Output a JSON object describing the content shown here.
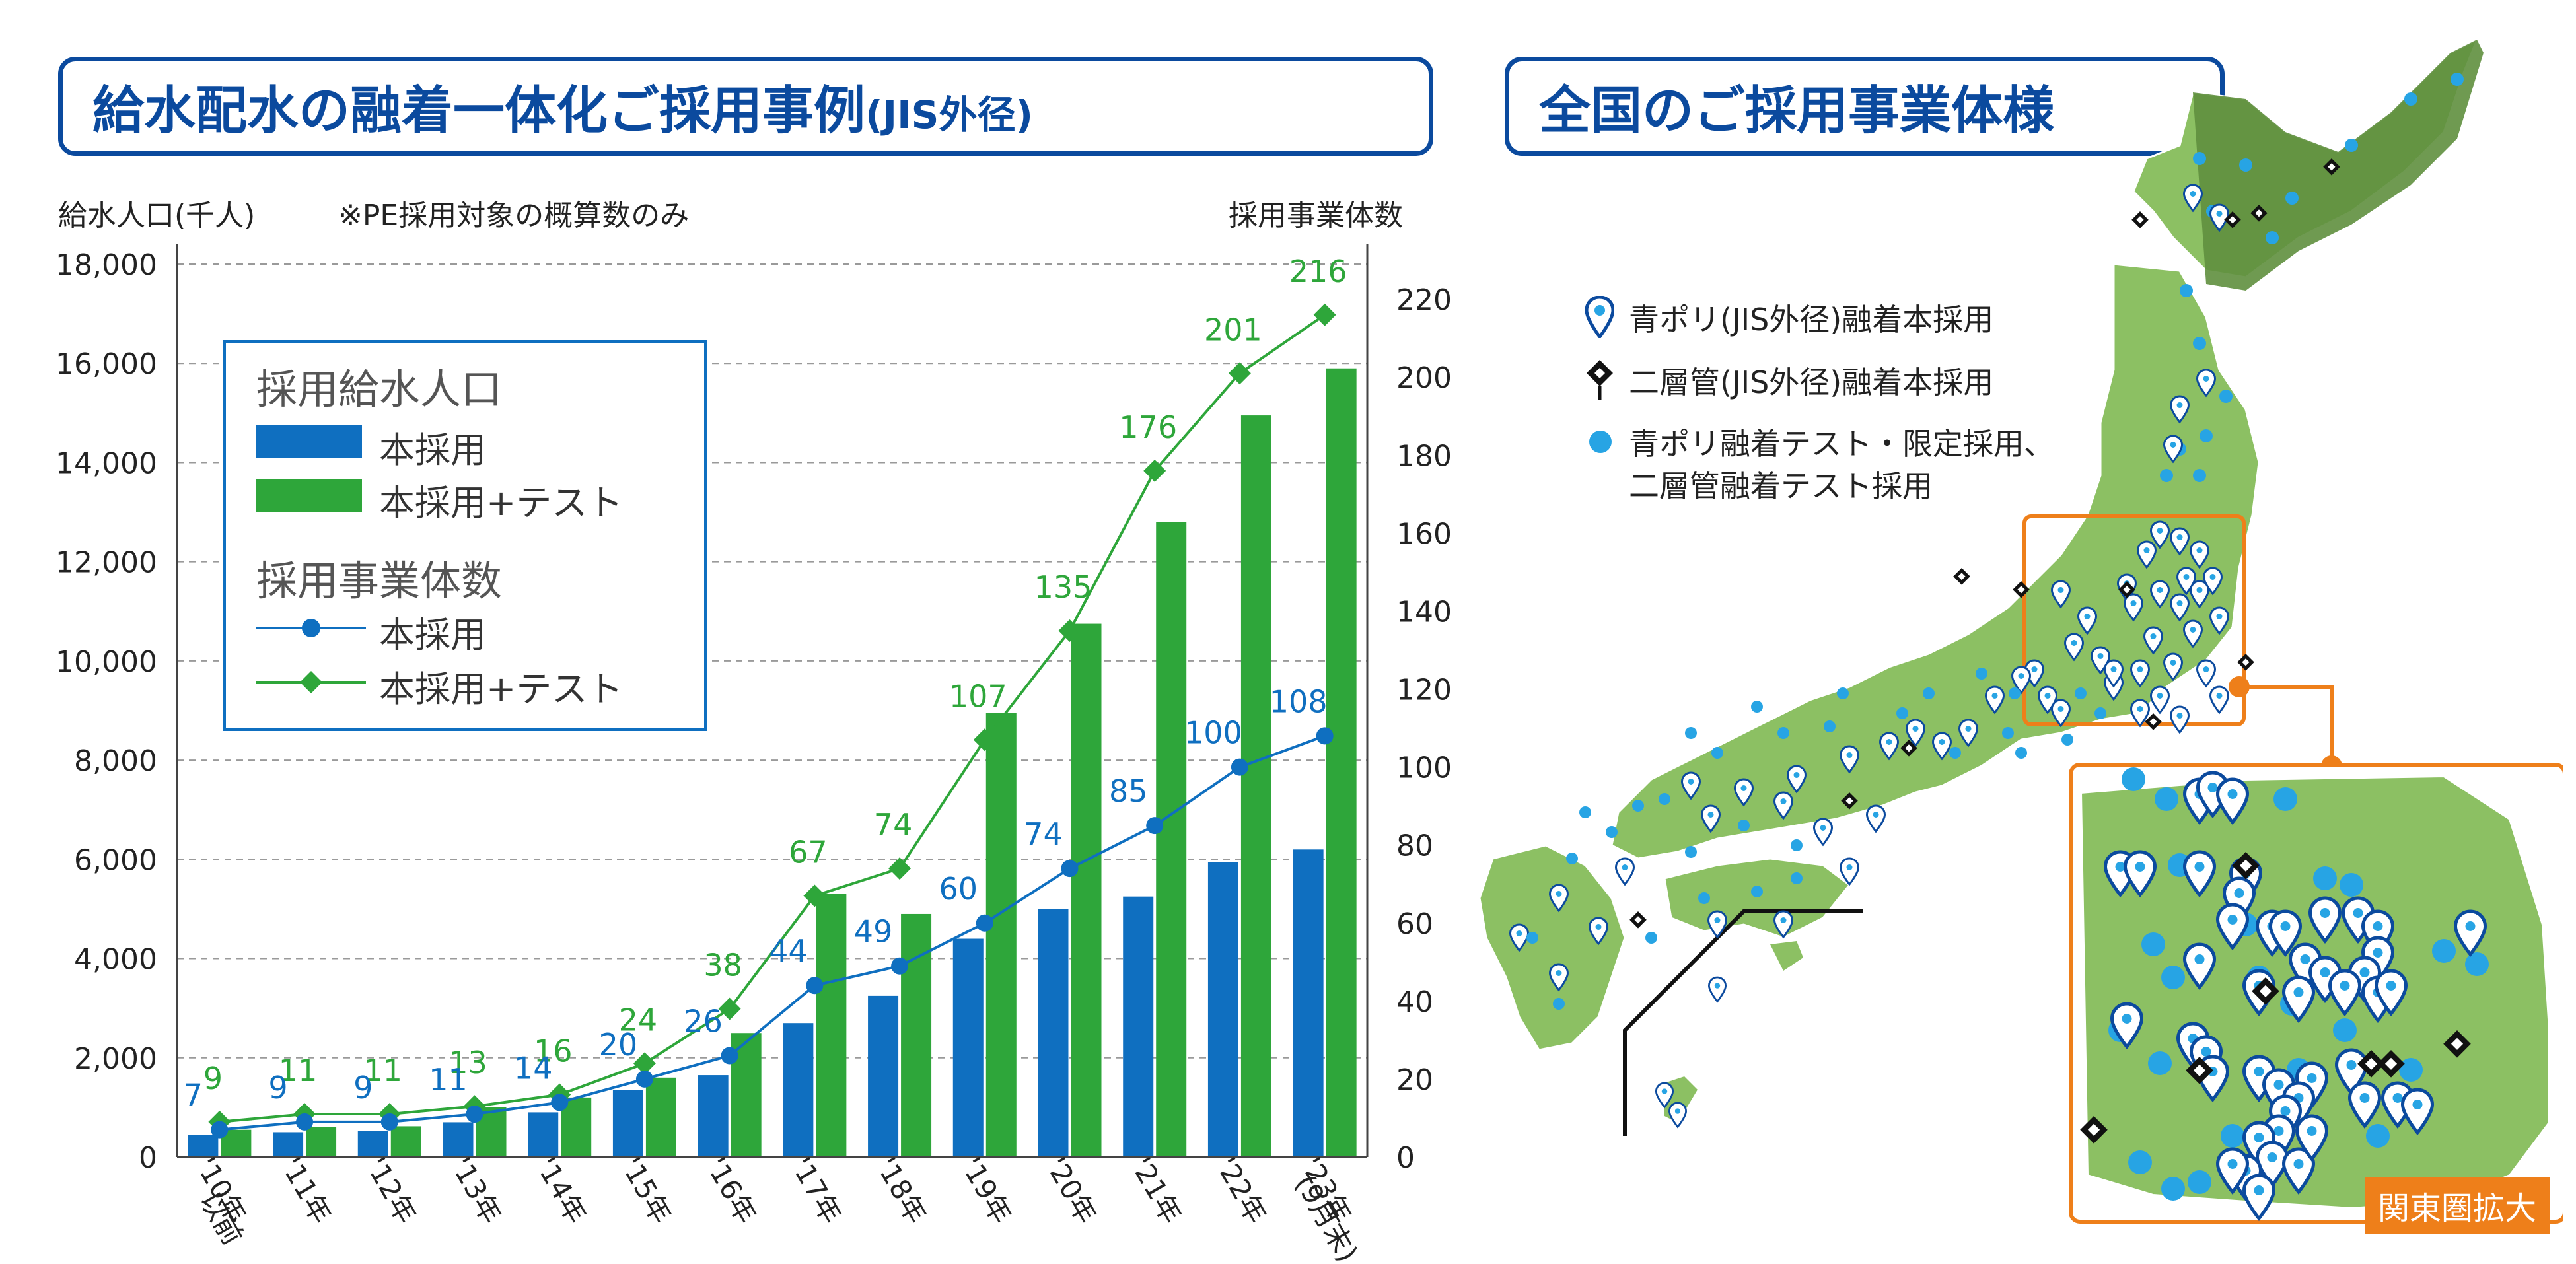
{
  "left_panel": {
    "title": "給水配水の融着一体化ご採用事例",
    "title_suffix": "(JIS外径)",
    "left_axis_label": "給水人口(千人)",
    "note": "※PE採用対象の概算数のみ",
    "right_axis_label": "採用事業体数"
  },
  "legend": {
    "group1_title": "採用給水人口",
    "group1_item1": "本採用",
    "group1_item2": "本採用+テスト",
    "group2_title": "採用事業体数",
    "group2_item1": "本採用",
    "group2_item2": "本採用+テスト"
  },
  "right_panel": {
    "title": "全国のご採用事業体様",
    "legend_pin_blue": "青ポリ(JIS外径)融着本採用",
    "legend_pin_black": "二層管(JIS外径)融着本採用",
    "legend_dot_line1": "青ポリ融着テスト・限定採用、",
    "legend_dot_line2": "二層管融着テスト採用",
    "inset_caption": "関東圏拡大"
  },
  "colors": {
    "blue": "#0f6fc0",
    "green": "#2ea63a",
    "title_blue": "#0b4a9e",
    "map_green": "#8cc063",
    "map_dark": "#5f8f3e",
    "orange": "#ee7f1a",
    "dot_blue": "#27a4e4"
  },
  "chart_data": {
    "type": "bar",
    "categories": [
      "'10年以前",
      "'11年",
      "'12年",
      "'13年",
      "'14年",
      "'15年",
      "'16年",
      "'17年",
      "'18年",
      "'19年",
      "'20年",
      "'21年",
      "'22年",
      "'23年(9月末)"
    ],
    "category_lines": [
      [
        "'10年",
        "以前"
      ],
      [
        "'11年"
      ],
      [
        "'12年"
      ],
      [
        "'13年"
      ],
      [
        "'14年"
      ],
      [
        "'15年"
      ],
      [
        "'16年"
      ],
      [
        "'17年"
      ],
      [
        "'18年"
      ],
      [
        "'19年"
      ],
      [
        "'20年"
      ],
      [
        "'21年"
      ],
      [
        "'22年"
      ],
      [
        "'23年",
        "(9月末)"
      ]
    ],
    "bar_series": [
      {
        "name": "本採用",
        "axis": "left",
        "values": [
          450,
          500,
          520,
          700,
          900,
          1350,
          1650,
          2700,
          3250,
          4400,
          5000,
          5250,
          5950,
          6200
        ]
      },
      {
        "name": "本採用+テスト",
        "axis": "left",
        "values": [
          550,
          600,
          620,
          1000,
          1200,
          1600,
          2500,
          5300,
          4900,
          8950,
          10750,
          12800,
          14950,
          15900
        ]
      }
    ],
    "line_series": [
      {
        "name": "本採用",
        "axis": "right",
        "values": [
          7,
          9,
          9,
          11,
          14,
          20,
          26,
          44,
          49,
          60,
          74,
          85,
          100,
          108
        ]
      },
      {
        "name": "本採用+テスト",
        "axis": "right",
        "values": [
          9,
          11,
          11,
          13,
          16,
          24,
          38,
          67,
          74,
          107,
          135,
          176,
          201,
          216
        ]
      }
    ],
    "left_ylim": [
      0,
      18000
    ],
    "left_ticks": [
      "0",
      "2,000",
      "4,000",
      "6,000",
      "8,000",
      "10,000",
      "12,000",
      "14,000",
      "16,000",
      "18,000"
    ],
    "right_ylim": [
      0,
      229
    ],
    "right_ticks": [
      "0",
      "20",
      "40",
      "60",
      "80",
      "100",
      "120",
      "140",
      "160",
      "180",
      "200",
      "220"
    ],
    "ylabel_left": "給水人口(千人)",
    "ylabel_right": "採用事業体数",
    "grid": true,
    "legend_position": "upper-left"
  }
}
